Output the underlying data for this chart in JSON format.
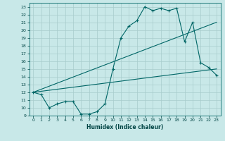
{
  "xlabel": "Humidex (Indice chaleur)",
  "bg_color": "#c8e8e8",
  "grid_color": "#a8cccc",
  "line_color": "#006666",
  "xlim": [
    -0.5,
    23.5
  ],
  "ylim": [
    9,
    23.5
  ],
  "yticks": [
    9,
    10,
    11,
    12,
    13,
    14,
    15,
    16,
    17,
    18,
    19,
    20,
    21,
    22,
    23
  ],
  "xticks": [
    0,
    1,
    2,
    3,
    4,
    5,
    6,
    7,
    8,
    9,
    10,
    11,
    12,
    13,
    14,
    15,
    16,
    17,
    18,
    19,
    20,
    21,
    22,
    23
  ],
  "line1_x": [
    0,
    1,
    2,
    3,
    4,
    5,
    6,
    7,
    8,
    9,
    10,
    11,
    12,
    13,
    14,
    15,
    16,
    17,
    18,
    19,
    20,
    21,
    22,
    23
  ],
  "line1_y": [
    12.0,
    11.7,
    10.0,
    10.5,
    10.8,
    10.8,
    9.2,
    9.2,
    9.5,
    10.5,
    15.0,
    19.0,
    20.5,
    21.2,
    23.0,
    22.5,
    22.8,
    22.5,
    22.8,
    18.5,
    21.0,
    15.8,
    15.2,
    14.2
  ],
  "line2_x": [
    0,
    23
  ],
  "line2_y": [
    12.0,
    15.0
  ],
  "line3_x": [
    0,
    23
  ],
  "line3_y": [
    12.0,
    21.0
  ]
}
